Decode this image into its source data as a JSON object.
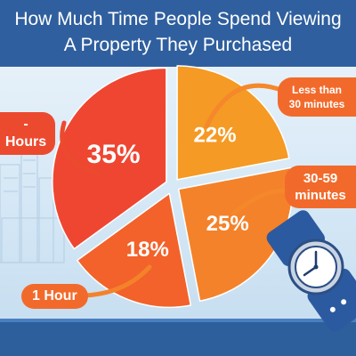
{
  "chart_data": {
    "type": "pie",
    "title_lines": [
      "How Much Time People Spend Viewing",
      "A Property They Purchased"
    ],
    "slices": [
      {
        "label": "Less than 30 minutes",
        "label_lines": [
          "Less than",
          "30 minutes"
        ],
        "value": 22,
        "value_label": "22%",
        "color": "#f59a24"
      },
      {
        "label": "30-59 minutes",
        "label_lines": [
          "30-59",
          "minutes"
        ],
        "value": 25,
        "value_label": "25%",
        "color": "#f4822a"
      },
      {
        "label": "1 Hour",
        "label_lines": [
          "1 Hour"
        ],
        "value": 18,
        "value_label": "18%",
        "color": "#f2622a"
      },
      {
        "label": "- Hours",
        "label_lines": [
          "- Hours"
        ],
        "value": 35,
        "value_label": "35%",
        "color": "#ef4632"
      }
    ]
  },
  "colors": {
    "header": "#2f5f9e",
    "callout_orange": "#f26a2b",
    "connector": "#f08a2a",
    "callout_red": "#ec4a2f"
  },
  "decorations": [
    "city-skyline",
    "wristwatch-icon"
  ]
}
